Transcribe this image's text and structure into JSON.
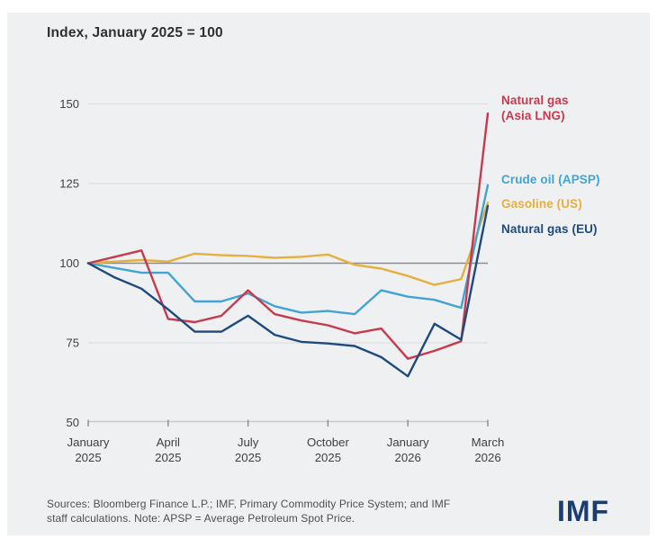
{
  "title": "Index, January 2025 = 100",
  "chart_data": {
    "type": "line",
    "title": "Index, January 2025 = 100",
    "n_points": 16,
    "x_start_label": "January 2025",
    "x_end_label": "March 2026",
    "x_tick_indices": [
      0,
      3,
      6,
      9,
      12,
      15
    ],
    "x_tick_labels": [
      [
        "January",
        "2025"
      ],
      [
        "April",
        "2025"
      ],
      [
        "July",
        "2025"
      ],
      [
        "October",
        "2025"
      ],
      [
        "January",
        "2026"
      ],
      [
        "March",
        "2026"
      ]
    ],
    "ylim": [
      50,
      150
    ],
    "y_ticks": [
      50,
      75,
      100,
      125,
      150
    ],
    "baseline": 100,
    "grid": "horizontal-faint",
    "legend_position": "right-of-line-ends",
    "series": [
      {
        "name": "Natural gas (Asia LNG)",
        "label_lines": [
          "Natural gas",
          "(Asia LNG)"
        ],
        "color": "#c73a4d",
        "values": [
          100,
          102,
          104,
          82.5,
          81.5,
          83.5,
          91.5,
          84,
          82,
          80.5,
          78,
          79.5,
          70,
          72.5,
          75.5,
          147
        ]
      },
      {
        "name": "Crude oil (APSP)",
        "label_lines": [
          "Crude oil (APSP)"
        ],
        "color": "#41a5d4",
        "values": [
          100,
          98.5,
          97,
          97,
          88,
          88,
          90.5,
          86.5,
          84.5,
          85,
          84,
          91.5,
          89.5,
          88.5,
          86,
          124.5
        ]
      },
      {
        "name": "Gasoline (US)",
        "label_lines": [
          "Gasoline (US)"
        ],
        "color": "#e5b03f",
        "values": [
          100,
          100.5,
          101,
          100.5,
          103,
          102.5,
          102.3,
          101.7,
          102,
          102.7,
          99.5,
          98.3,
          96,
          93.2,
          95,
          119
        ]
      },
      {
        "name": "Natural gas (EU)",
        "label_lines": [
          "Natural gas (EU)"
        ],
        "color": "#1f4a7d",
        "values": [
          100,
          95.5,
          92,
          85.5,
          78.5,
          78.5,
          83.5,
          77.5,
          75.3,
          74.8,
          74,
          70.5,
          64.5,
          81,
          76,
          118
        ]
      }
    ],
    "colors": {
      "baseline_line": "#8a8d90",
      "gridline": "#dcdee0",
      "axis_line": "#c6c8ca",
      "tick_mark": "#8f9193",
      "tick_text": "#3e3f40"
    }
  },
  "footer": {
    "source_lines": [
      "Sources: Bloomberg Finance L.P.; IMF, Primary Commodity Price System; and IMF",
      "staff calculations. Note: APSP = Average Petroleum Spot Price."
    ],
    "logo_text": "IMF"
  }
}
